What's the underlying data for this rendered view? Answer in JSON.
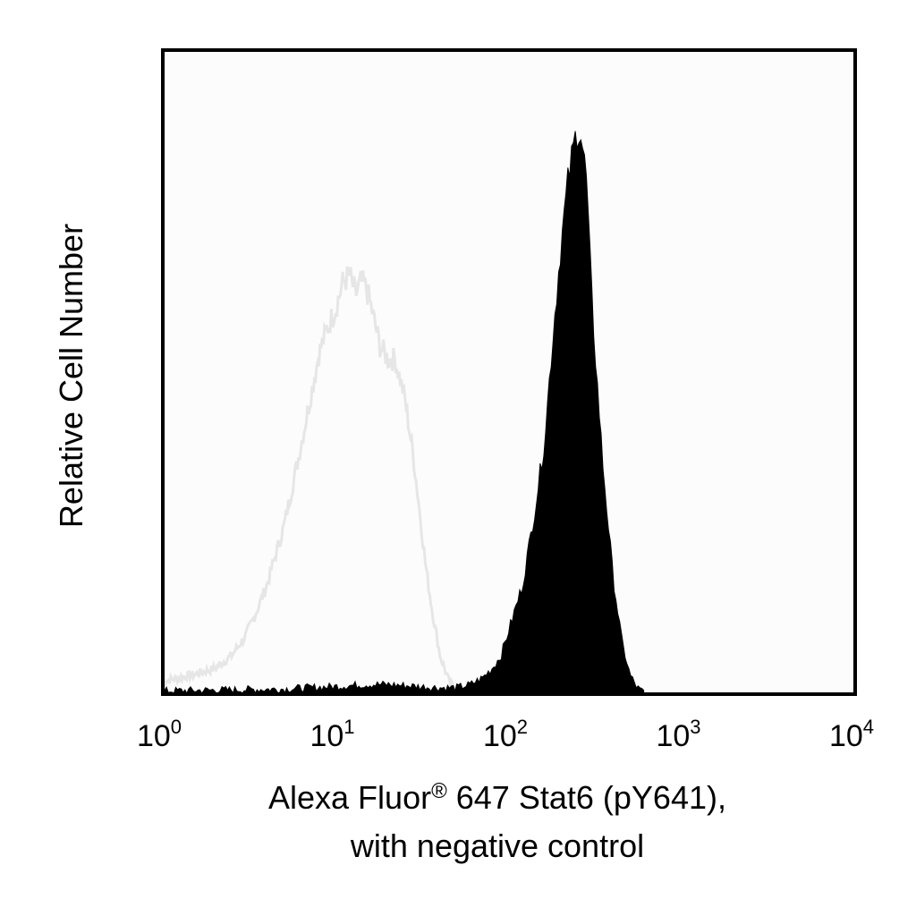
{
  "chart_data": {
    "type": "histogram",
    "x_scale": "log10",
    "xlim": [
      1,
      10000
    ],
    "x_ticks": [
      {
        "value": 1,
        "base": "10",
        "exp": "0"
      },
      {
        "value": 10,
        "base": "10",
        "exp": "1"
      },
      {
        "value": 100,
        "base": "10",
        "exp": "2"
      },
      {
        "value": 1000,
        "base": "10",
        "exp": "3"
      },
      {
        "value": 10000,
        "base": "10",
        "exp": "4"
      }
    ],
    "xlabel_line1_pre": "Alexa Fluor",
    "xlabel_reg": "®",
    "xlabel_line1_post": " 647 Stat6 (pY641),",
    "xlabel_line2": "with negative control",
    "ylabel": "Relative Cell Number",
    "ylim": [
      0,
      100
    ],
    "grid": false,
    "series": [
      {
        "role": "negative control",
        "style": "outline",
        "color": "#e6e6e6",
        "points": [
          [
            1,
            2
          ],
          [
            1.5,
            3
          ],
          [
            2,
            4
          ],
          [
            2.5,
            6
          ],
          [
            3,
            9
          ],
          [
            3.5,
            13
          ],
          [
            4,
            17
          ],
          [
            5,
            26
          ],
          [
            6,
            36
          ],
          [
            7,
            45
          ],
          [
            8,
            53
          ],
          [
            9,
            57
          ],
          [
            10,
            60
          ],
          [
            11,
            64
          ],
          [
            12,
            65
          ],
          [
            13,
            62
          ],
          [
            14,
            64
          ],
          [
            15,
            63
          ],
          [
            16,
            60
          ],
          [
            18,
            54
          ],
          [
            20,
            52
          ],
          [
            22,
            52
          ],
          [
            25,
            46
          ],
          [
            28,
            37
          ],
          [
            30,
            30
          ],
          [
            33,
            20
          ],
          [
            36,
            13
          ],
          [
            40,
            6
          ],
          [
            45,
            2
          ],
          [
            50,
            0.5
          ]
        ]
      },
      {
        "role": "Stat6 (pY641) stained",
        "style": "filled",
        "color": "#000000",
        "points": [
          [
            1,
            0.5
          ],
          [
            5,
            0.8
          ],
          [
            10,
            1.2
          ],
          [
            15,
            1.5
          ],
          [
            20,
            1.5
          ],
          [
            30,
            1.2
          ],
          [
            40,
            1
          ],
          [
            50,
            1
          ],
          [
            60,
            1.5
          ],
          [
            70,
            2.5
          ],
          [
            80,
            4
          ],
          [
            90,
            6
          ],
          [
            100,
            10
          ],
          [
            120,
            17
          ],
          [
            140,
            28
          ],
          [
            160,
            39
          ],
          [
            180,
            56
          ],
          [
            200,
            70
          ],
          [
            220,
            80
          ],
          [
            240,
            86
          ],
          [
            250,
            88
          ],
          [
            260,
            87
          ],
          [
            280,
            80
          ],
          [
            300,
            62
          ],
          [
            320,
            50
          ],
          [
            350,
            35
          ],
          [
            400,
            18
          ],
          [
            450,
            8
          ],
          [
            500,
            3
          ],
          [
            550,
            1
          ],
          [
            600,
            0.3
          ]
        ]
      }
    ]
  }
}
